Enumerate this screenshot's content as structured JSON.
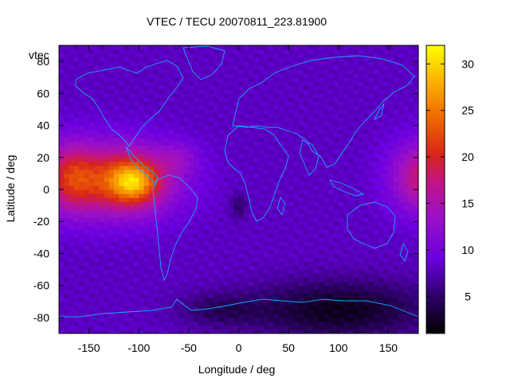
{
  "chart_data": {
    "type": "heatmap",
    "title": "VTEC / TECU 20070811_223.81900",
    "xlabel": "Longitude / deg",
    "ylabel": "Latitude / deg",
    "xlim": [
      -180,
      180
    ],
    "ylim": [
      -90,
      90
    ],
    "x_ticks": [
      -150,
      -100,
      -50,
      0,
      50,
      100,
      150
    ],
    "y_ticks": [
      -80,
      -60,
      -40,
      -20,
      0,
      20,
      40,
      60,
      80
    ],
    "colorbar": {
      "label": "vtec",
      "range": [
        1,
        32
      ],
      "ticks": [
        5,
        10,
        15,
        20,
        25,
        30
      ],
      "colormap": "gnuplot pm3d (black-purple-red-orange-yellow)"
    },
    "features": [
      {
        "name": "equatorial anomaly peak",
        "lon": -105,
        "lat": 7,
        "vtec": 32
      },
      {
        "name": "western hemisphere enhancement",
        "lon": -130,
        "lat": 5,
        "vtec": 22
      },
      {
        "name": "eastern edge enhancement",
        "lon": 175,
        "lat": 10,
        "vtec": 20
      },
      {
        "name": "night-side low",
        "lon": 100,
        "lat": -70,
        "vtec": 2
      }
    ],
    "overlay": "coastlines"
  }
}
